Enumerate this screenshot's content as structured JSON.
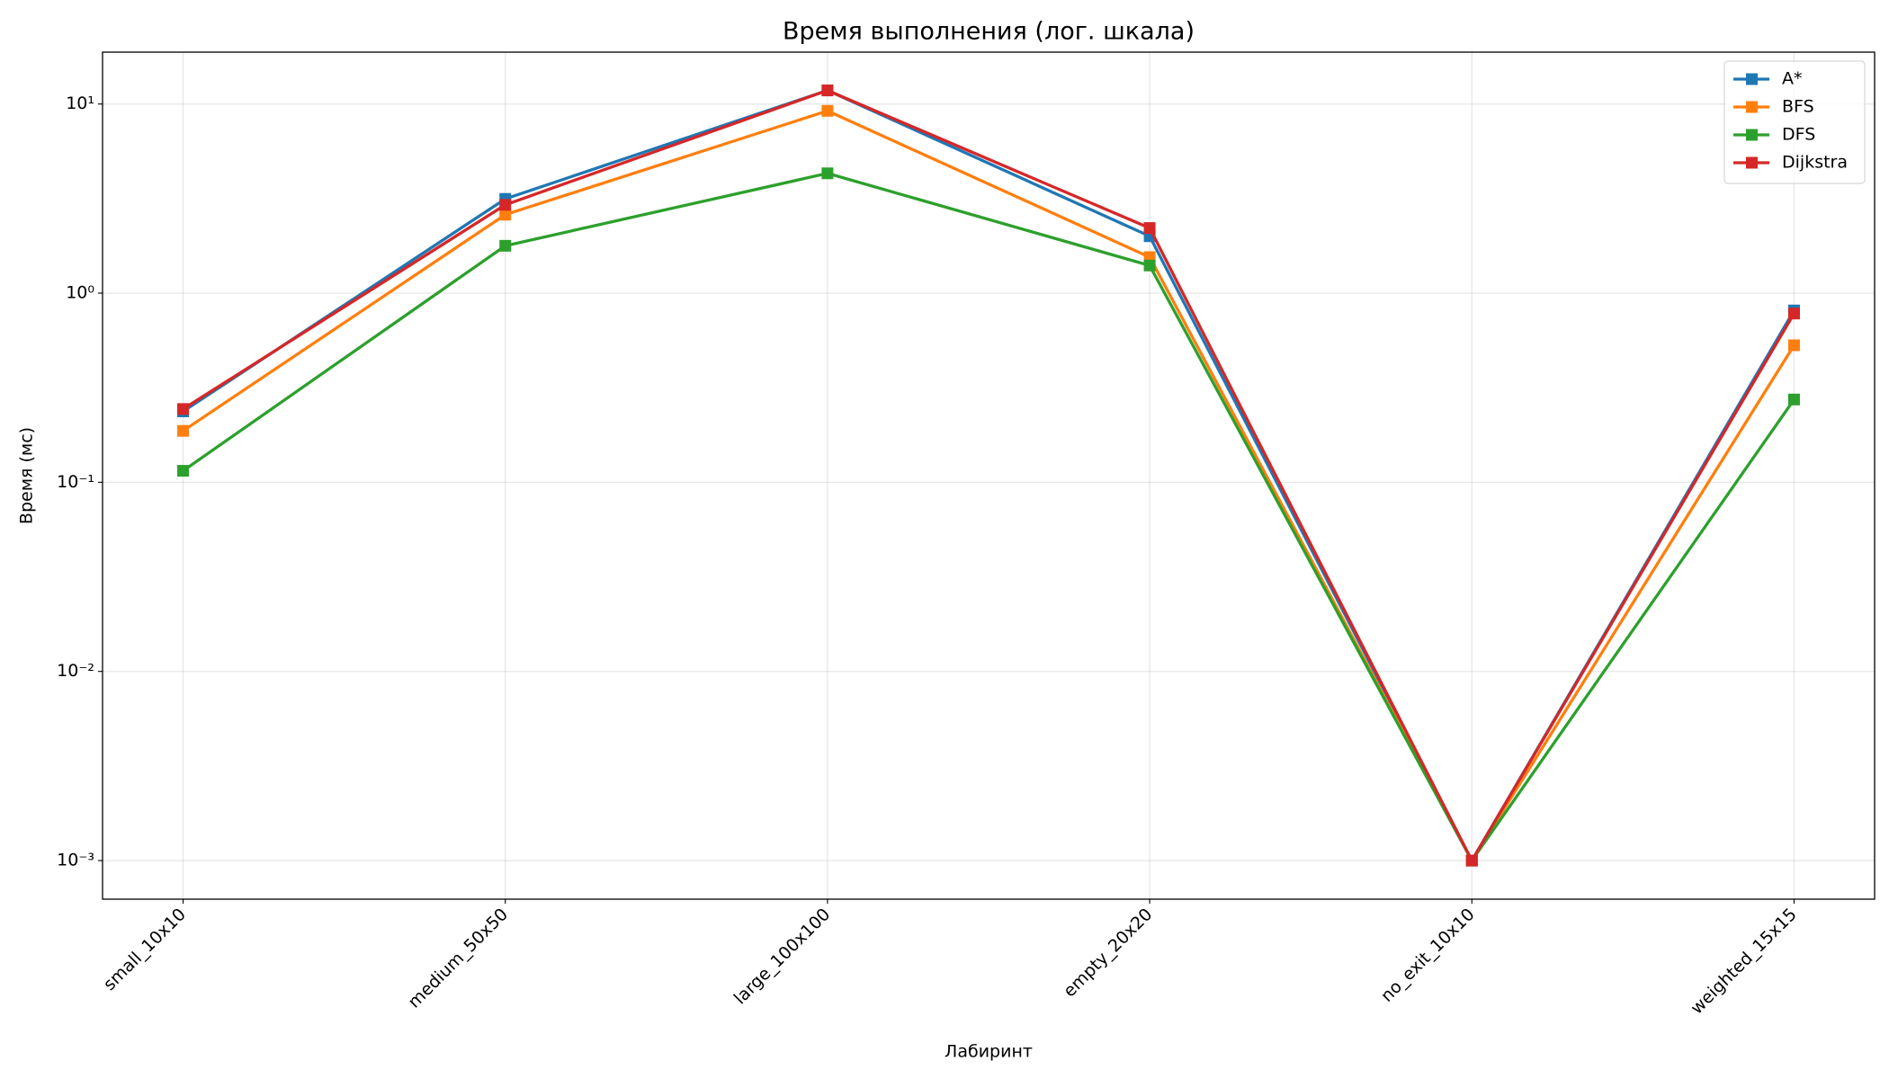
{
  "chart_data": {
    "type": "line",
    "title": "Время выполнения (лог. шкала)",
    "x_label": "Лабиринт",
    "y_label": "Время (мс)",
    "categories": [
      "small_10x10",
      "medium_50x50",
      "large_100x100",
      "empty_20x20",
      "no_exit_10x10",
      "weighted_15x15"
    ],
    "series": [
      {
        "name": "A*",
        "color": "#1f77b4",
        "values": [
          0.237,
          3.15,
          11.8,
          2.0,
          0.001,
          0.81
        ]
      },
      {
        "name": "BFS",
        "color": "#ff7f0e",
        "values": [
          0.187,
          2.6,
          9.2,
          1.55,
          0.001,
          0.53
        ]
      },
      {
        "name": "DFS",
        "color": "#2ca02c",
        "values": [
          0.115,
          1.78,
          4.3,
          1.4,
          0.001,
          0.274
        ]
      },
      {
        "name": "Dijkstra",
        "color": "#d62728",
        "values": [
          0.244,
          2.93,
          11.8,
          2.21,
          0.001,
          0.78
        ]
      }
    ],
    "y_scale": "log",
    "ylim": [
      0.000625,
      18.8
    ],
    "yticks": [
      {
        "value": 0.001,
        "label": "10⁻³"
      },
      {
        "value": 0.01,
        "label": "10⁻²"
      },
      {
        "value": 0.1,
        "label": "10⁻¹"
      },
      {
        "value": 1,
        "label": "10⁰"
      },
      {
        "value": 10,
        "label": "10¹"
      }
    ],
    "grid": true,
    "legend": "upper right",
    "marker": "square"
  }
}
